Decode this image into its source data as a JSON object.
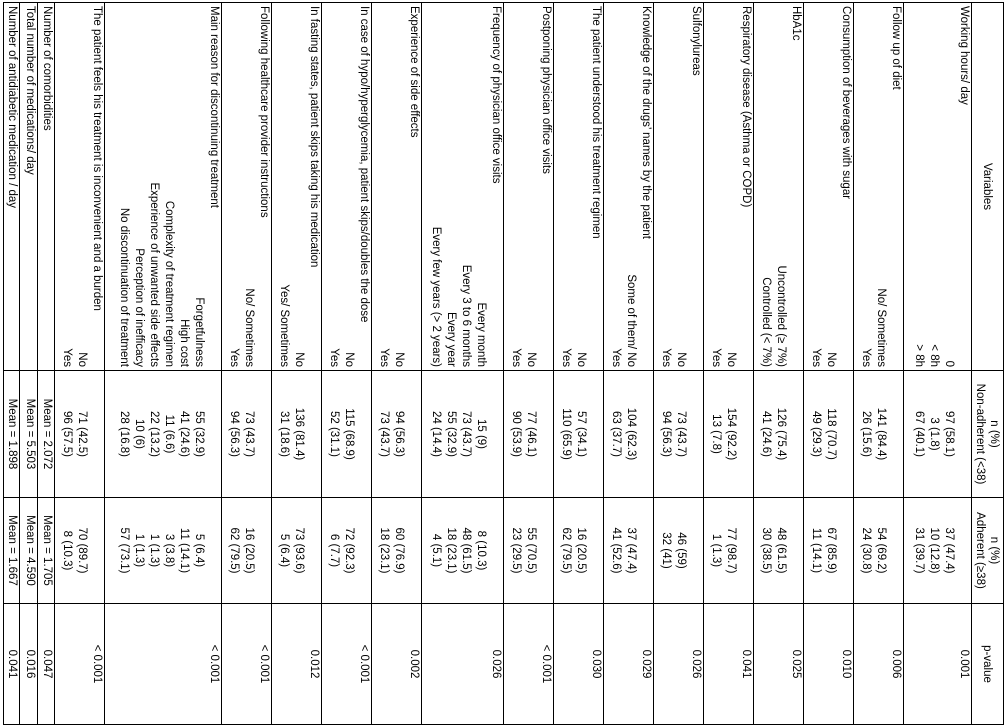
{
  "header": {
    "variables": "Variables",
    "n_pct": "n (%)",
    "nonadherent": "Non-adherent (<38)",
    "adherent": "Adherent (≥38)",
    "pvalue": "p-value"
  },
  "rows": [
    {
      "label": "Working hours/ day",
      "subs": [
        "0",
        "< 8h",
        "> 8h"
      ],
      "non": [
        "97 (58.1)",
        "3 (1.8)",
        "67 (40.1)"
      ],
      "adh": [
        "37 (47.4)",
        "10 (12.8)",
        "31 (39.7)"
      ],
      "p": "0.001"
    },
    {
      "label": "Follow up of diet",
      "subs": [
        "No/ Sometimes",
        "Yes"
      ],
      "non": [
        "141 (84.4)",
        "26 (15.6)"
      ],
      "adh": [
        "54 (69.2)",
        "24 (30.8)"
      ],
      "p": "0.006"
    },
    {
      "label": "Consumption of beverages with sugar",
      "subs": [
        "No",
        "Yes"
      ],
      "non": [
        "118 (70.7)",
        "49 (29.3)"
      ],
      "adh": [
        "67 (85.9)",
        "11 (14.1)"
      ],
      "p": "0.010"
    },
    {
      "label": "HbA1c",
      "subs": [
        "Uncontrolled (≥ 7%)",
        "Controlled (< 7%)"
      ],
      "non": [
        "126 (75.4)",
        "41 (24.6)"
      ],
      "adh": [
        "48 (61.5)",
        "30 (38.5)"
      ],
      "p": "0.025"
    },
    {
      "label": "Respiratory disease (Asthma or COPD)",
      "subs": [
        "No",
        "Yes"
      ],
      "non": [
        "154 (92.2)",
        "13 (7.8)"
      ],
      "adh": [
        "77 (98.7)",
        "1 (1.3)"
      ],
      "p": "0.041"
    },
    {
      "label": "Sulfonylureas",
      "subs": [
        "No",
        "Yes"
      ],
      "non": [
        "73 (43.7)",
        "94 (56.3)"
      ],
      "adh": [
        "46 (59)",
        "32 (41)"
      ],
      "p": "0.026"
    },
    {
      "label": "Knowledge of the drugs’ names by the patient",
      "subs": [
        "Some of them/ No",
        "Yes"
      ],
      "non": [
        "104 (62.3)",
        "63 (37.7)"
      ],
      "adh": [
        "37 (47.4)",
        "41 (52.6)"
      ],
      "p": "0.029"
    },
    {
      "label": "The patient understood his treatment regimen",
      "subs": [
        "No",
        "Yes"
      ],
      "non": [
        "57 (34.1)",
        "110 (65.9)"
      ],
      "adh": [
        "16 (20.5)",
        "62 (79.5)"
      ],
      "p": "0.030"
    },
    {
      "label": "Postponing physician office visits",
      "subs": [
        "No",
        "Yes"
      ],
      "non": [
        "77 (46.1)",
        "90 (53.9)"
      ],
      "adh": [
        "55 (70.5)",
        "23 (29.5)"
      ],
      "p": "< 0.001"
    },
    {
      "label": "Frequency of physician office visits",
      "subs": [
        "Every month",
        "Every 3 to 6 months",
        "Every year",
        "Every few years (> 2 years)"
      ],
      "non": [
        "15 (9)",
        "73 (43.7)",
        "55 (32.9)",
        "24 (14.4)"
      ],
      "adh": [
        "8 (10.3)",
        "48 (61.5)",
        "18 (23.1)",
        "4 (5.1)"
      ],
      "p": "0.026"
    },
    {
      "label": "Experience of side effects",
      "subs": [
        "No",
        "Yes"
      ],
      "non": [
        "94 (56.3)",
        "73 (43.7)"
      ],
      "adh": [
        "60 (76.9)",
        "18 (23.1)"
      ],
      "p": "0.002"
    },
    {
      "label": "In case of hypo/hyperglycemia, patient skips/doubles the dose",
      "subs": [
        "No",
        "Yes"
      ],
      "non": [
        "115 (68.9)",
        "52 (31.1)"
      ],
      "adh": [
        "72 (92.3)",
        "6 (7.7)"
      ],
      "p": "< 0.001"
    },
    {
      "label": "In fasting states, patient skips taking his medication",
      "subs": [
        "No",
        "Yes/ Sometimes"
      ],
      "non": [
        "136 (81.4)",
        "31 (18.6)"
      ],
      "adh": [
        "73 (93.6)",
        "5 (6.4)"
      ],
      "p": "0.012"
    },
    {
      "label": "Following healthcare provider instructions",
      "subs": [
        "No/ Sometimes",
        "Yes"
      ],
      "non": [
        "73 (43.7)",
        "94 (56.3)"
      ],
      "adh": [
        "16 (20.5)",
        "62 (79.5)"
      ],
      "p": "< 0.001"
    },
    {
      "label": "Main reason for discontinuing treatment",
      "subs": [
        "Forgetfulness",
        "High cost",
        "Complexity of treatment regimen",
        "Experience of unwanted side effects",
        "Perception of inefficacy",
        "No discontinuation of treatment"
      ],
      "non": [
        "55 (32.9)",
        "41 (24.6)",
        "11 (6.6)",
        "22 (13.2)",
        "10 (6)",
        "28 (16.8)"
      ],
      "adh": [
        "5 (6.4)",
        "11 (14.1)",
        "3 (3.8)",
        "1 (1.3)",
        "1 (1.3)",
        "57 (73.1)"
      ],
      "p": "< 0.001"
    },
    {
      "label": "The patient feels his treatment is inconvenient and a burden",
      "subs": [
        "No",
        "Yes"
      ],
      "non": [
        "71 (42.5)",
        "96 (57.5)"
      ],
      "adh": [
        "70 (89.7)",
        "8 (10.3)"
      ],
      "p": "< 0.001"
    },
    {
      "label": "Number of comorbidities",
      "subs": [],
      "non": [
        "Mean = 2.072"
      ],
      "adh": [
        "Mean = 1.705"
      ],
      "p": "0.047",
      "single": true
    },
    {
      "label": "Total number of medications/ day",
      "subs": [],
      "non": [
        "Mean = 5.503"
      ],
      "adh": [
        "Mean = 4.590"
      ],
      "p": "0.016",
      "single": true
    },
    {
      "label": "Number of antidiabetic medication / day",
      "subs": [],
      "non": [
        "Mean = 1.898"
      ],
      "adh": [
        "Mean = 1.667"
      ],
      "p": "0.041",
      "single": true
    }
  ]
}
